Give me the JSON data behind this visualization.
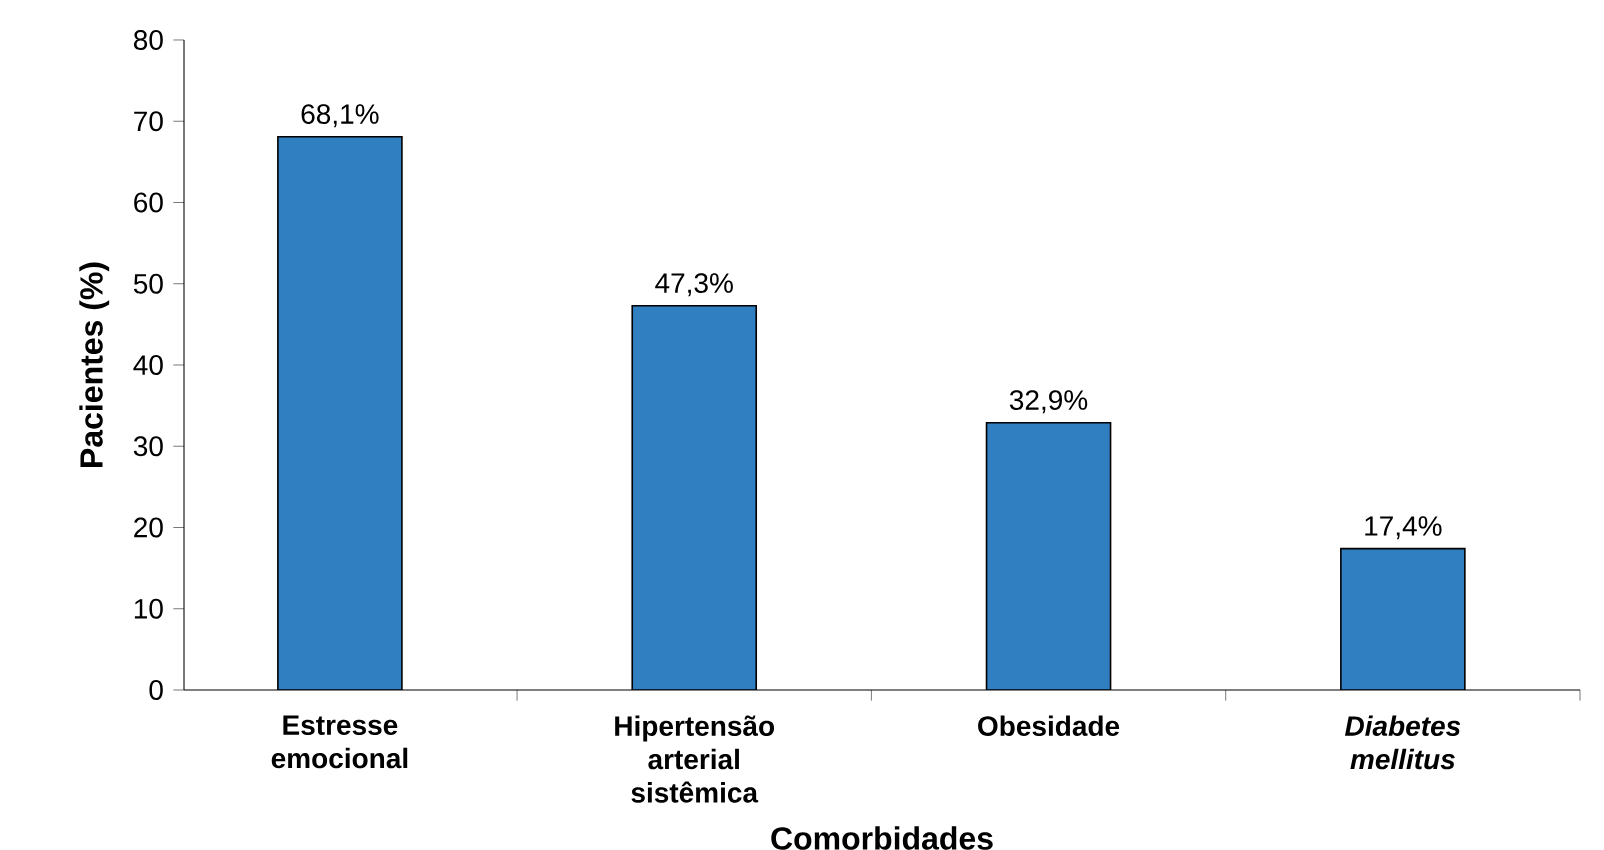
{
  "chart_data": {
    "type": "bar",
    "xlabel": "Comorbidades",
    "ylabel": "Pacientes (%)",
    "categories": [
      "Estresse emocional",
      "Hipertensão arterial sistêmica",
      "Obesidade",
      "*Diabetes mellitus*"
    ],
    "values": [
      68.1,
      47.3,
      32.9,
      17.4
    ],
    "value_labels": [
      "68,1%",
      "47,3%",
      "32,9%",
      "17,4%"
    ],
    "color": "#2f7fc1",
    "ylim": [
      0,
      80
    ],
    "yticks": [
      0,
      10,
      20,
      30,
      40,
      50,
      60,
      70,
      80
    ]
  }
}
